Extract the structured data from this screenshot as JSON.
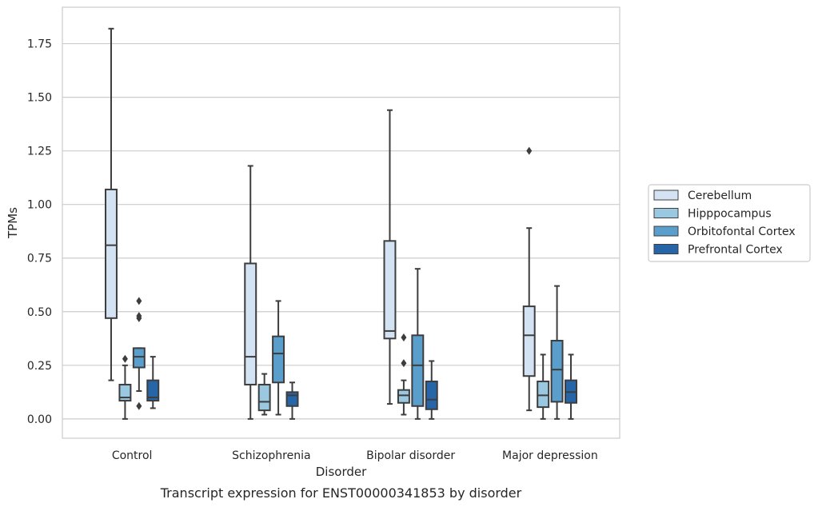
{
  "chart_data": {
    "type": "boxplot",
    "title": "",
    "caption": "Transcript expression for ENST00000341853 by disorder",
    "xlabel": "Disorder",
    "ylabel": "TPMs",
    "ylim": [
      -0.09,
      1.92
    ],
    "yticks": [
      0.0,
      0.25,
      0.5,
      0.75,
      1.0,
      1.25,
      1.5,
      1.75
    ],
    "ytick_labels": [
      "0.00",
      "0.25",
      "0.50",
      "0.75",
      "1.00",
      "1.25",
      "1.50",
      "1.75"
    ],
    "grid": "horizontal",
    "legend_placement": "right",
    "categories": [
      "Control",
      "Schizophrenia",
      "Bipolar disorder",
      "Major depression"
    ],
    "series": [
      {
        "name": "Cerebellum",
        "color": "#d3e3f3",
        "boxes": [
          {
            "whislo": 0.18,
            "q1": 0.47,
            "median": 0.81,
            "q3": 1.07,
            "whishi": 1.82,
            "fliers": []
          },
          {
            "whislo": 0.0,
            "q1": 0.16,
            "median": 0.29,
            "q3": 0.725,
            "whishi": 1.18,
            "fliers": []
          },
          {
            "whislo": 0.07,
            "q1": 0.375,
            "median": 0.41,
            "q3": 0.83,
            "whishi": 1.44,
            "fliers": []
          },
          {
            "whislo": 0.04,
            "q1": 0.2,
            "median": 0.39,
            "q3": 0.525,
            "whishi": 0.89,
            "fliers": [
              1.25
            ]
          }
        ]
      },
      {
        "name": "Hipppocampus",
        "color": "#9ac8e0",
        "boxes": [
          {
            "whislo": 0.0,
            "q1": 0.085,
            "median": 0.1,
            "q3": 0.16,
            "whishi": 0.25,
            "fliers": [
              0.28
            ]
          },
          {
            "whislo": 0.02,
            "q1": 0.04,
            "median": 0.08,
            "q3": 0.16,
            "whishi": 0.21,
            "fliers": []
          },
          {
            "whislo": 0.02,
            "q1": 0.075,
            "median": 0.11,
            "q3": 0.135,
            "whishi": 0.18,
            "fliers": [
              0.26,
              0.38
            ]
          },
          {
            "whislo": 0.0,
            "q1": 0.055,
            "median": 0.11,
            "q3": 0.175,
            "whishi": 0.3,
            "fliers": []
          }
        ]
      },
      {
        "name": "Orbitofontal Cortex",
        "color": "#5a9fcc",
        "boxes": [
          {
            "whislo": 0.13,
            "q1": 0.24,
            "median": 0.29,
            "q3": 0.33,
            "whishi": 0.33,
            "fliers": [
              0.06,
              0.47,
              0.48,
              0.55
            ]
          },
          {
            "whislo": 0.02,
            "q1": 0.17,
            "median": 0.305,
            "q3": 0.385,
            "whishi": 0.55,
            "fliers": []
          },
          {
            "whislo": 0.0,
            "q1": 0.06,
            "median": 0.25,
            "q3": 0.39,
            "whishi": 0.7,
            "fliers": []
          },
          {
            "whislo": 0.0,
            "q1": 0.08,
            "median": 0.23,
            "q3": 0.365,
            "whishi": 0.62,
            "fliers": []
          }
        ]
      },
      {
        "name": "Prefrontal Cortex",
        "color": "#2666a8",
        "boxes": [
          {
            "whislo": 0.05,
            "q1": 0.085,
            "median": 0.1,
            "q3": 0.18,
            "whishi": 0.29,
            "fliers": []
          },
          {
            "whislo": 0.0,
            "q1": 0.06,
            "median": 0.11,
            "q3": 0.125,
            "whishi": 0.17,
            "fliers": []
          },
          {
            "whislo": 0.0,
            "q1": 0.045,
            "median": 0.09,
            "q3": 0.175,
            "whishi": 0.27,
            "fliers": []
          },
          {
            "whislo": 0.0,
            "q1": 0.075,
            "median": 0.125,
            "q3": 0.18,
            "whishi": 0.3,
            "fliers": []
          }
        ]
      }
    ]
  }
}
